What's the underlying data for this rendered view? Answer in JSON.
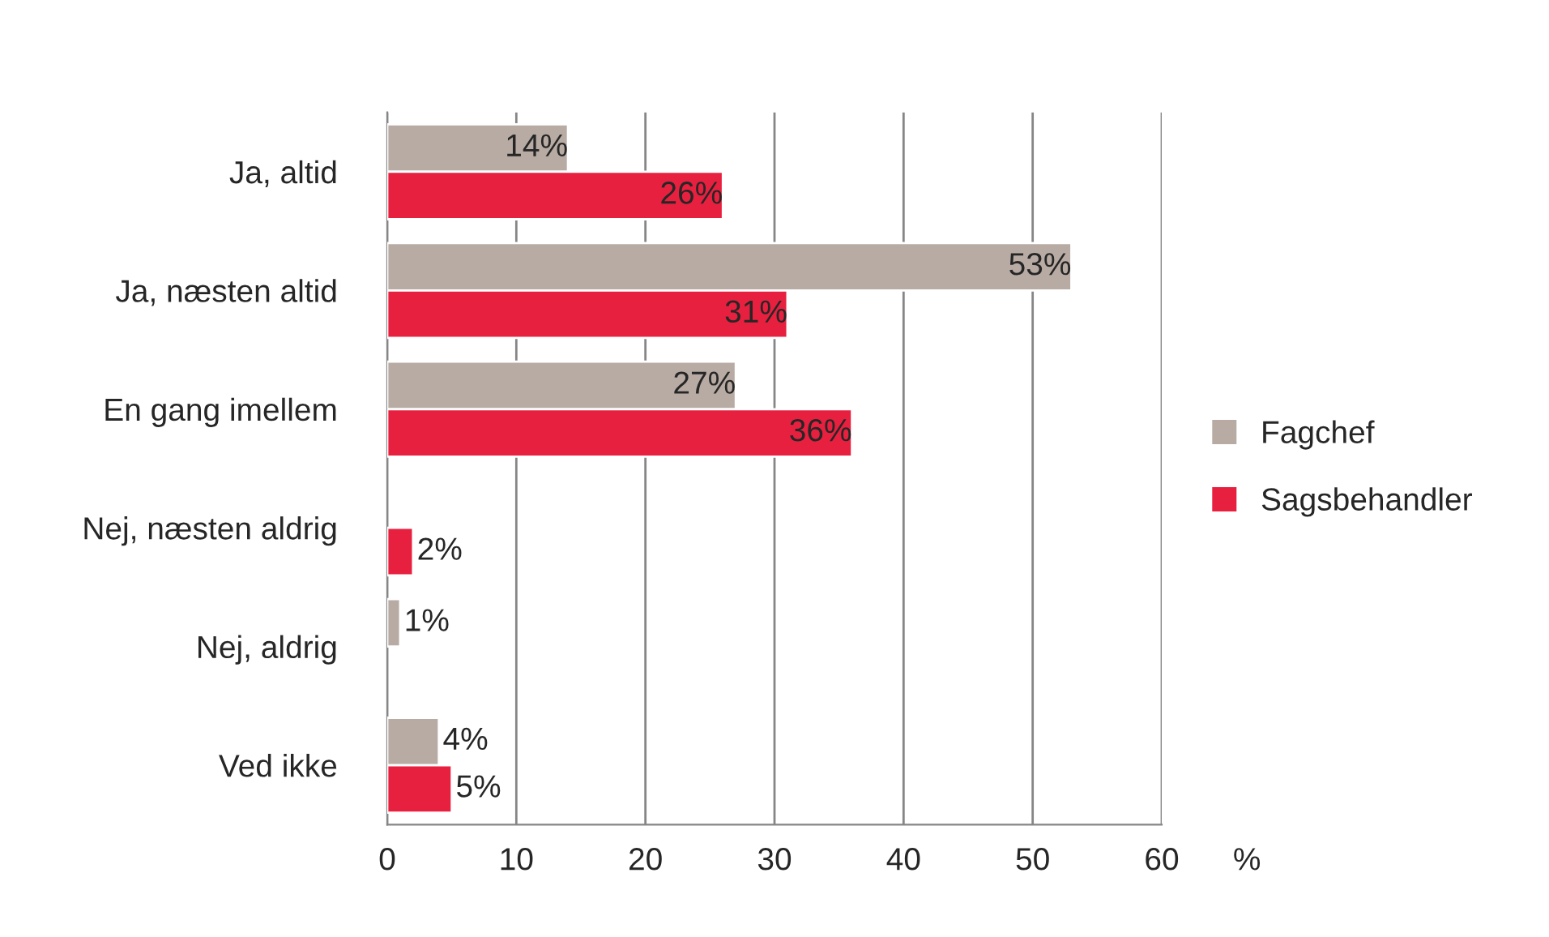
{
  "chart_data": {
    "type": "bar",
    "orientation": "horizontal",
    "categories": [
      "Ja, altid",
      "Ja, næsten altid",
      "En gang imellem",
      "Nej, næsten aldrig",
      "Nej, aldrig",
      "Ved ikke"
    ],
    "series": [
      {
        "name": "Fagchef",
        "color": "#b8aba3",
        "values": [
          14,
          53,
          27,
          null,
          1,
          4
        ],
        "value_labels": [
          "14%",
          "53%",
          "27%",
          null,
          "1%",
          "4%"
        ]
      },
      {
        "name": "Sagsbehandler",
        "color": "#e8203f",
        "values": [
          26,
          31,
          36,
          2,
          null,
          5
        ],
        "value_labels": [
          "26%",
          "31%",
          "36%",
          "2%",
          null,
          "5%"
        ]
      }
    ],
    "xlabel": "%",
    "xlim": [
      0,
      60
    ],
    "xticks": [
      0,
      10,
      20,
      30,
      40,
      50,
      60
    ],
    "grid": "x",
    "legend": "right"
  }
}
